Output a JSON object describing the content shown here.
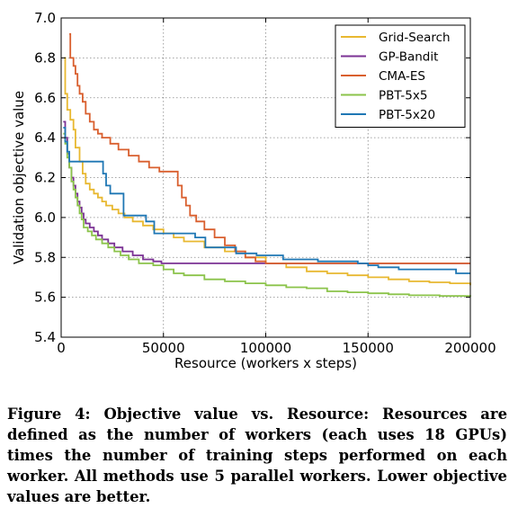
{
  "chart_data": {
    "type": "line",
    "title": "",
    "xlabel": "Resource (workers x steps)",
    "ylabel": "Validation objective value",
    "xlim": [
      0,
      200000
    ],
    "ylim": [
      5.4,
      7.0
    ],
    "xticks": [
      0,
      50000,
      100000,
      150000,
      200000
    ],
    "yticks": [
      5.4,
      5.6,
      5.8,
      6.0,
      6.2,
      6.4,
      6.6,
      6.8,
      7.0
    ],
    "grid": true,
    "legend_position": "top-right",
    "series": [
      {
        "name": "Grid-Search",
        "color": "#e8b830",
        "points": [
          [
            1500,
            6.8
          ],
          [
            2000,
            6.62
          ],
          [
            3000,
            6.54
          ],
          [
            4500,
            6.49
          ],
          [
            6000,
            6.44
          ],
          [
            7000,
            6.35
          ],
          [
            9000,
            6.28
          ],
          [
            10500,
            6.22
          ],
          [
            12000,
            6.17
          ],
          [
            14000,
            6.14
          ],
          [
            16000,
            6.12
          ],
          [
            18000,
            6.1
          ],
          [
            20000,
            6.08
          ],
          [
            22000,
            6.06
          ],
          [
            25000,
            6.04
          ],
          [
            28000,
            6.02
          ],
          [
            31000,
            6.0
          ],
          [
            35000,
            5.98
          ],
          [
            40000,
            5.96
          ],
          [
            45000,
            5.94
          ],
          [
            50000,
            5.92
          ],
          [
            55000,
            5.9
          ],
          [
            60000,
            5.88
          ],
          [
            70000,
            5.85
          ],
          [
            80000,
            5.83
          ],
          [
            90000,
            5.8
          ],
          [
            100000,
            5.77
          ],
          [
            110000,
            5.75
          ],
          [
            120000,
            5.73
          ],
          [
            130000,
            5.72
          ],
          [
            140000,
            5.71
          ],
          [
            150000,
            5.7
          ],
          [
            160000,
            5.69
          ],
          [
            170000,
            5.68
          ],
          [
            180000,
            5.675
          ],
          [
            190000,
            5.67
          ],
          [
            200000,
            5.66
          ]
        ]
      },
      {
        "name": "GP-Bandit",
        "color": "#7b3294",
        "points": [
          [
            1000,
            6.48
          ],
          [
            2000,
            6.4
          ],
          [
            3000,
            6.32
          ],
          [
            4000,
            6.25
          ],
          [
            5000,
            6.2
          ],
          [
            6000,
            6.16
          ],
          [
            7000,
            6.12
          ],
          [
            8000,
            6.08
          ],
          [
            9000,
            6.05
          ],
          [
            10000,
            6.02
          ],
          [
            11000,
            5.99
          ],
          [
            12000,
            5.97
          ],
          [
            14000,
            5.95
          ],
          [
            16000,
            5.93
          ],
          [
            18000,
            5.91
          ],
          [
            20000,
            5.89
          ],
          [
            23000,
            5.87
          ],
          [
            26000,
            5.85
          ],
          [
            30000,
            5.83
          ],
          [
            35000,
            5.81
          ],
          [
            40000,
            5.79
          ],
          [
            45000,
            5.78
          ],
          [
            49000,
            5.77
          ],
          [
            200000,
            5.77
          ]
        ]
      },
      {
        "name": "CMA-ES",
        "color": "#d95f2e",
        "points": [
          [
            4000,
            6.92
          ],
          [
            4500,
            6.8
          ],
          [
            6000,
            6.76
          ],
          [
            7000,
            6.72
          ],
          [
            8000,
            6.66
          ],
          [
            9000,
            6.62
          ],
          [
            10500,
            6.58
          ],
          [
            12000,
            6.52
          ],
          [
            14000,
            6.48
          ],
          [
            16000,
            6.44
          ],
          [
            18000,
            6.42
          ],
          [
            20000,
            6.4
          ],
          [
            24000,
            6.37
          ],
          [
            28000,
            6.34
          ],
          [
            33000,
            6.31
          ],
          [
            38000,
            6.28
          ],
          [
            43000,
            6.25
          ],
          [
            48000,
            6.23
          ],
          [
            55000,
            6.23
          ],
          [
            57000,
            6.16
          ],
          [
            59000,
            6.1
          ],
          [
            61000,
            6.06
          ],
          [
            63000,
            6.01
          ],
          [
            66000,
            5.98
          ],
          [
            70000,
            5.94
          ],
          [
            75000,
            5.9
          ],
          [
            80000,
            5.86
          ],
          [
            85000,
            5.83
          ],
          [
            90000,
            5.8
          ],
          [
            95000,
            5.78
          ],
          [
            100000,
            5.77
          ],
          [
            200000,
            5.77
          ]
        ]
      },
      {
        "name": "PBT-5x5",
        "color": "#8bc34a",
        "points": [
          [
            1000,
            6.42
          ],
          [
            2000,
            6.37
          ],
          [
            3000,
            6.3
          ],
          [
            4000,
            6.25
          ],
          [
            5000,
            6.18
          ],
          [
            6000,
            6.14
          ],
          [
            7000,
            6.1
          ],
          [
            8000,
            6.06
          ],
          [
            9000,
            6.02
          ],
          [
            10000,
            5.99
          ],
          [
            11000,
            5.95
          ],
          [
            13000,
            5.93
          ],
          [
            15000,
            5.91
          ],
          [
            17000,
            5.89
          ],
          [
            20000,
            5.87
          ],
          [
            23000,
            5.85
          ],
          [
            26000,
            5.83
          ],
          [
            29000,
            5.81
          ],
          [
            33000,
            5.79
          ],
          [
            38000,
            5.77
          ],
          [
            45000,
            5.76
          ],
          [
            50000,
            5.74
          ],
          [
            55000,
            5.72
          ],
          [
            60000,
            5.71
          ],
          [
            70000,
            5.69
          ],
          [
            80000,
            5.68
          ],
          [
            90000,
            5.67
          ],
          [
            100000,
            5.66
          ],
          [
            110000,
            5.65
          ],
          [
            120000,
            5.645
          ],
          [
            130000,
            5.63
          ],
          [
            140000,
            5.625
          ],
          [
            150000,
            5.62
          ],
          [
            160000,
            5.615
          ],
          [
            170000,
            5.61
          ],
          [
            185000,
            5.607
          ],
          [
            200000,
            5.603
          ]
        ]
      },
      {
        "name": "PBT-5x20",
        "color": "#1f77b4",
        "points": [
          [
            1000,
            6.45
          ],
          [
            2000,
            6.38
          ],
          [
            3000,
            6.33
          ],
          [
            4000,
            6.28
          ],
          [
            9000,
            6.28
          ],
          [
            20000,
            6.28
          ],
          [
            20500,
            6.22
          ],
          [
            22000,
            6.16
          ],
          [
            24000,
            6.12
          ],
          [
            30000,
            6.12
          ],
          [
            30500,
            6.01
          ],
          [
            41000,
            6.01
          ],
          [
            41500,
            5.98
          ],
          [
            45000,
            5.98
          ],
          [
            45500,
            5.92
          ],
          [
            65000,
            5.92
          ],
          [
            65500,
            5.9
          ],
          [
            70000,
            5.9
          ],
          [
            70500,
            5.85
          ],
          [
            85000,
            5.85
          ],
          [
            85500,
            5.82
          ],
          [
            95000,
            5.82
          ],
          [
            95500,
            5.81
          ],
          [
            108000,
            5.81
          ],
          [
            108500,
            5.79
          ],
          [
            125000,
            5.79
          ],
          [
            125500,
            5.78
          ],
          [
            140000,
            5.78
          ],
          [
            145000,
            5.77
          ],
          [
            150000,
            5.76
          ],
          [
            155000,
            5.75
          ],
          [
            165000,
            5.74
          ],
          [
            185000,
            5.74
          ],
          [
            192000,
            5.74
          ],
          [
            193000,
            5.72
          ],
          [
            200000,
            5.72
          ]
        ]
      }
    ]
  },
  "caption": {
    "text": "Figure 4: Objective value vs. Resource: Resources are defined as the number of workers (each uses 18 GPUs) times the number of training steps performed on each worker. All methods use 5 parallel workers. Lower objective values are better."
  }
}
